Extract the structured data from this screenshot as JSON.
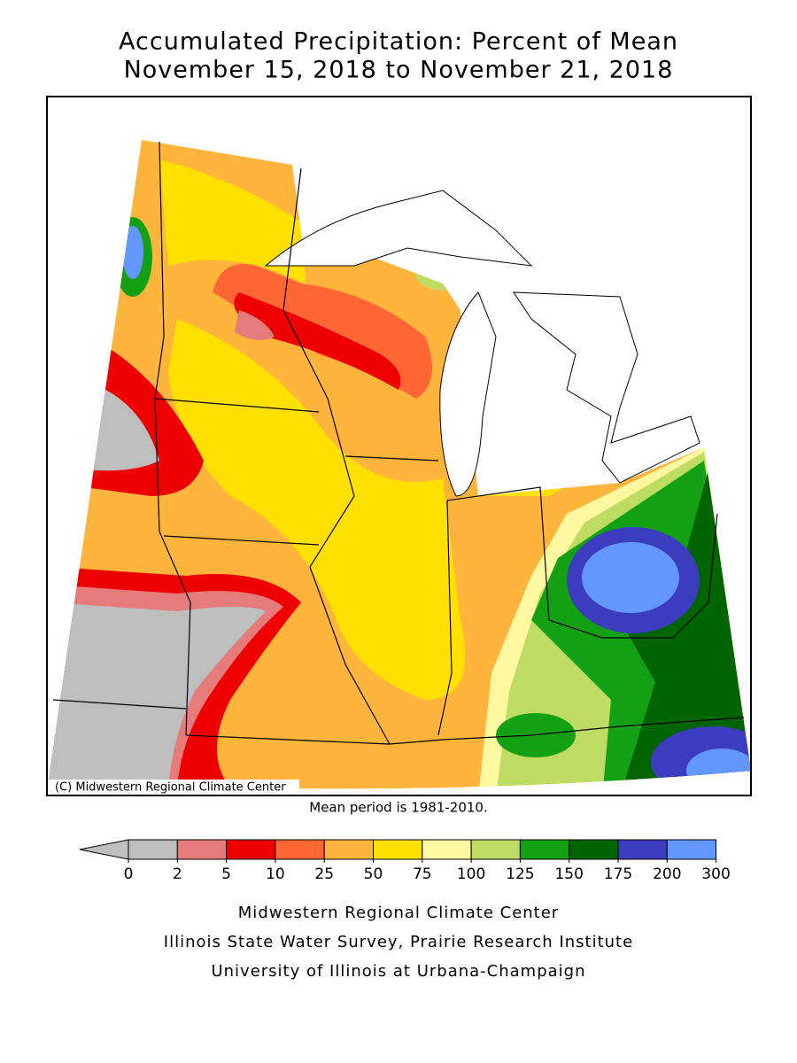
{
  "title": [
    "Accumulated Precipitation: Percent of Mean",
    "November 15, 2018 to November 21, 2018"
  ],
  "map": {
    "credit": "(C) Midwestern Regional Climate Center"
  },
  "note": "Mean period is 1981-2010.",
  "legend": {
    "ticks": [
      0,
      2,
      5,
      10,
      25,
      50,
      75,
      100,
      125,
      150,
      175,
      200,
      300
    ],
    "colors": [
      "#bebebe",
      "#e57b7b",
      "#ee0000",
      "#ff6633",
      "#ffb43c",
      "#ffe000",
      "#fff8a0",
      "#bedc64",
      "#14a014",
      "#006400",
      "#3c3cbe",
      "#6496ff"
    ],
    "extend_color": "#bebebe"
  },
  "footer": [
    "Midwestern Regional Climate Center",
    "Illinois State Water Survey, Prairie Research Institute",
    "University of Illinois at Urbana-Champaign"
  ]
}
